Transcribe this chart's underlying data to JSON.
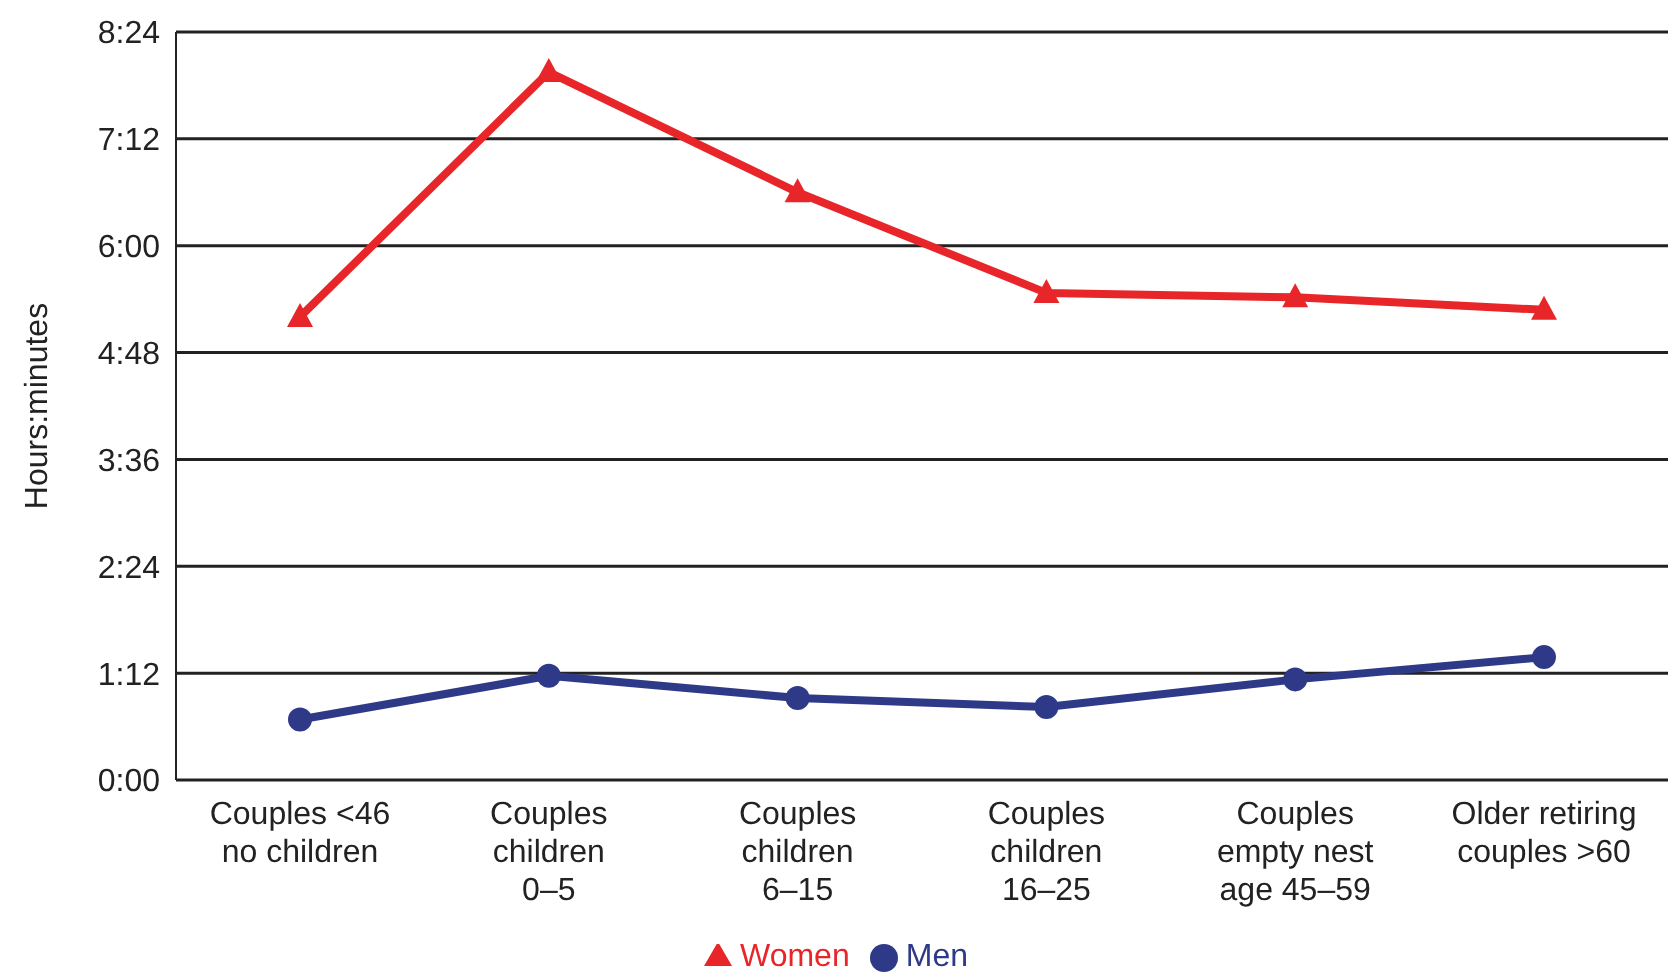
{
  "chart_data": {
    "type": "line",
    "ylabel": "Hours:minutes",
    "categories": [
      "Couples <46\nno children",
      "Couples\nchildren\n0–5",
      "Couples\nchildren\n6–15",
      "Couples\nchildren\n16–25",
      "Couples\nempty nest\nage 45–59",
      "Older retiring\ncouples >60"
    ],
    "series": [
      {
        "name": "Women",
        "color": "#e8262a",
        "marker": "triangle",
        "values": [
          5.2,
          7.95,
          6.6,
          5.47,
          5.42,
          5.28
        ]
      },
      {
        "name": "Men",
        "color": "#2e3a87",
        "marker": "circle",
        "values": [
          0.68,
          1.17,
          0.92,
          0.82,
          1.13,
          1.38
        ]
      }
    ],
    "ylim": [
      0,
      8.4
    ],
    "yticks": [
      {
        "value": 0,
        "label": "0:00"
      },
      {
        "value": 1.2,
        "label": "1:12"
      },
      {
        "value": 2.4,
        "label": "2:24"
      },
      {
        "value": 3.6,
        "label": "3:36"
      },
      {
        "value": 4.8,
        "label": "4:48"
      },
      {
        "value": 6,
        "label": "6:00"
      },
      {
        "value": 7.2,
        "label": "7:12"
      },
      {
        "value": 8.4,
        "label": "8:24"
      }
    ],
    "grid": "y",
    "legend": "bottom",
    "line_style": "solid"
  }
}
